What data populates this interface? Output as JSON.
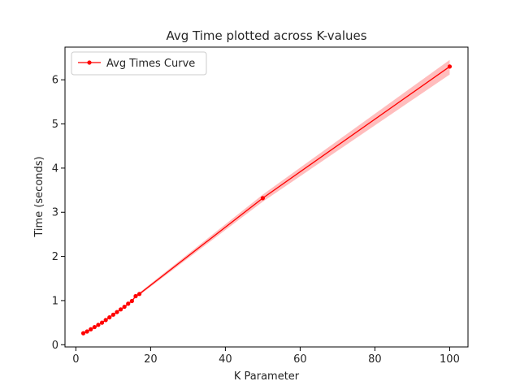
{
  "chart_data": {
    "type": "line",
    "title": "Avg Time plotted across K-values",
    "xlabel": "K Parameter",
    "ylabel": "Time (seconds)",
    "xlim": [
      -2.9,
      104.9
    ],
    "ylim": [
      -0.05,
      6.74
    ],
    "xticks": [
      0,
      20,
      40,
      60,
      80,
      100
    ],
    "yticks": [
      0,
      1,
      2,
      3,
      4,
      5,
      6
    ],
    "grid": false,
    "legend_position": "upper-left",
    "series": [
      {
        "name": "Avg Times Curve",
        "color": "#ff0000",
        "band_color": "#ff9a9a",
        "marker": "circle",
        "x": [
          2,
          3,
          4,
          5,
          6,
          7,
          8,
          9,
          10,
          11,
          12,
          13,
          14,
          15,
          16,
          17,
          50,
          100
        ],
        "y": [
          0.26,
          0.3,
          0.35,
          0.4,
          0.45,
          0.5,
          0.56,
          0.62,
          0.68,
          0.74,
          0.8,
          0.86,
          0.93,
          0.99,
          1.1,
          1.15,
          3.32,
          6.3
        ],
        "band_lower": [
          0.25,
          0.29,
          0.34,
          0.39,
          0.44,
          0.49,
          0.55,
          0.61,
          0.67,
          0.72,
          0.78,
          0.84,
          0.91,
          0.97,
          1.07,
          1.12,
          3.24,
          6.12
        ],
        "band_upper": [
          0.27,
          0.31,
          0.36,
          0.41,
          0.46,
          0.51,
          0.57,
          0.63,
          0.69,
          0.76,
          0.82,
          0.88,
          0.95,
          1.01,
          1.13,
          1.18,
          3.4,
          6.45
        ]
      }
    ]
  }
}
